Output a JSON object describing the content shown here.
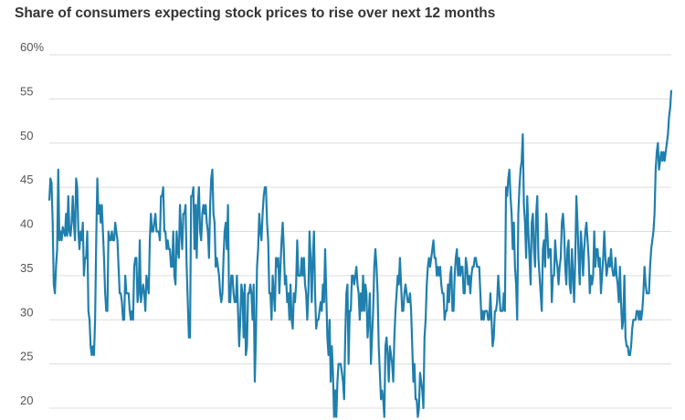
{
  "chart_data": {
    "type": "line",
    "title": "Share of consumers expecting stock prices to rise over next 12 months",
    "xlabel": "",
    "ylabel": "",
    "ylim": [
      20,
      60
    ],
    "y_ticks": [
      {
        "value": 60,
        "label": "60%"
      },
      {
        "value": 55,
        "label": "55"
      },
      {
        "value": 50,
        "label": "50"
      },
      {
        "value": 45,
        "label": "45"
      },
      {
        "value": 40,
        "label": "40"
      },
      {
        "value": 35,
        "label": "35"
      },
      {
        "value": 30,
        "label": "30"
      },
      {
        "value": 25,
        "label": "25"
      },
      {
        "value": 20,
        "label": "20"
      }
    ],
    "grid": "horizontal",
    "legend": "none",
    "line_color": "#1f7fad",
    "series": [
      {
        "values": [
          43.5,
          46,
          45.5,
          41,
          34,
          33,
          36,
          38,
          47,
          39,
          40,
          39,
          40.5,
          40,
          39.5,
          42,
          39.5,
          44,
          40,
          39.5,
          41,
          44,
          41,
          39,
          46,
          45,
          40,
          38,
          40,
          39,
          41,
          35,
          37,
          37,
          40,
          31,
          30,
          27,
          26,
          27,
          26,
          30,
          39,
          46,
          42,
          43,
          41,
          43,
          40,
          37,
          33,
          31,
          31,
          40,
          39,
          39,
          40,
          39,
          39,
          41,
          40,
          39,
          36,
          33,
          33,
          32,
          30,
          30,
          35,
          33,
          33,
          33,
          31,
          30,
          31,
          30,
          36,
          37,
          37,
          32,
          33,
          39,
          32,
          33,
          34,
          33,
          31,
          35,
          34,
          33,
          39,
          42,
          40,
          40,
          41,
          42,
          40,
          40,
          40,
          39,
          44,
          44,
          45,
          40,
          40,
          38,
          39,
          38,
          38,
          36,
          36,
          40,
          35,
          34,
          40,
          38,
          37,
          43,
          40,
          38,
          42,
          42,
          43,
          36,
          32,
          28,
          28,
          44,
          44,
          45,
          38,
          43,
          37,
          43,
          45,
          40,
          39,
          42,
          43,
          42,
          43,
          41,
          40,
          37,
          43,
          46,
          47,
          42,
          41,
          36,
          37,
          36,
          35,
          33,
          32,
          33,
          37,
          40,
          41,
          38,
          43,
          32,
          32,
          35,
          35,
          33,
          32,
          32,
          35,
          31,
          27,
          30,
          34,
          33,
          28,
          34,
          26,
          27,
          33,
          33,
          34,
          33,
          30,
          34,
          23,
          28,
          36,
          38,
          42,
          40,
          39,
          42,
          44,
          45,
          45,
          41,
          39,
          33,
          33,
          30,
          35,
          33,
          31,
          37,
          36,
          37,
          33,
          36,
          39,
          41,
          38,
          34,
          35,
          32,
          33,
          30,
          34,
          30,
          29,
          33,
          32,
          34,
          39,
          35,
          35,
          35,
          37,
          35,
          37,
          34,
          33,
          30,
          33,
          40,
          37,
          32,
          37,
          40,
          33,
          29,
          30,
          30,
          31,
          32,
          31,
          34,
          32,
          38,
          33,
          28,
          26,
          30,
          23,
          27,
          24,
          19,
          22,
          19,
          23,
          25,
          25,
          25,
          24,
          23,
          21,
          28,
          33,
          34,
          25,
          31,
          31,
          35,
          35,
          34,
          35,
          36,
          34,
          33,
          30,
          33,
          31,
          35,
          31,
          34,
          33,
          28,
          30,
          33,
          25,
          28,
          31,
          36,
          38,
          36,
          33,
          27,
          24,
          21,
          22,
          21,
          19,
          27,
          28,
          26,
          23,
          27,
          26,
          25,
          23,
          28,
          31,
          33,
          35,
          34,
          37,
          34,
          31,
          31,
          33,
          34,
          33,
          32,
          32,
          33,
          31,
          27,
          23,
          25,
          21,
          21,
          19,
          20,
          24,
          23,
          22,
          20,
          28,
          30,
          34,
          36,
          37,
          36,
          37,
          38,
          39,
          37,
          37,
          35,
          36,
          35,
          36,
          34,
          33,
          33,
          30,
          31,
          31,
          34,
          32,
          35,
          36,
          31,
          31,
          35,
          37,
          38,
          35,
          37,
          35,
          36,
          36,
          33,
          33,
          37,
          36,
          34,
          35,
          33,
          35,
          36,
          36,
          37,
          37,
          36,
          36,
          36,
          33,
          30,
          31,
          30,
          31,
          31,
          31,
          30,
          30,
          33,
          30,
          27,
          28,
          31,
          31,
          32,
          35,
          33,
          31,
          31,
          31,
          33,
          31,
          45,
          44,
          46,
          47,
          44,
          42,
          38,
          41,
          36,
          34,
          30,
          42,
          45,
          47,
          48,
          51,
          43,
          41,
          37,
          44,
          40,
          37,
          34,
          41,
          42,
          38,
          36,
          42,
          44,
          37,
          35,
          33,
          31,
          38,
          39,
          36,
          42,
          40,
          37,
          38,
          38,
          32,
          35,
          35,
          39,
          37,
          36,
          34,
          36,
          37,
          41,
          42,
          40,
          36,
          34,
          38,
          39,
          34,
          33,
          38,
          35,
          32,
          37,
          44,
          41,
          37,
          34,
          40,
          38,
          35,
          38,
          40,
          41,
          39,
          37,
          33,
          35,
          34,
          35,
          40,
          36,
          38,
          38,
          36,
          37,
          33,
          35,
          37,
          40,
          37,
          35,
          36,
          37,
          36,
          38,
          36,
          35,
          35,
          37,
          35,
          34,
          32,
          36,
          32,
          29,
          30,
          35,
          28,
          27,
          27,
          26,
          26,
          27,
          29,
          30,
          30,
          30,
          31,
          31,
          30,
          31,
          30,
          31,
          33,
          36,
          34,
          33,
          33,
          33,
          36,
          38,
          39,
          40,
          42,
          47,
          49,
          50,
          47,
          48,
          49,
          48,
          49,
          48,
          49,
          50,
          51,
          53,
          54,
          56
        ]
      }
    ]
  }
}
